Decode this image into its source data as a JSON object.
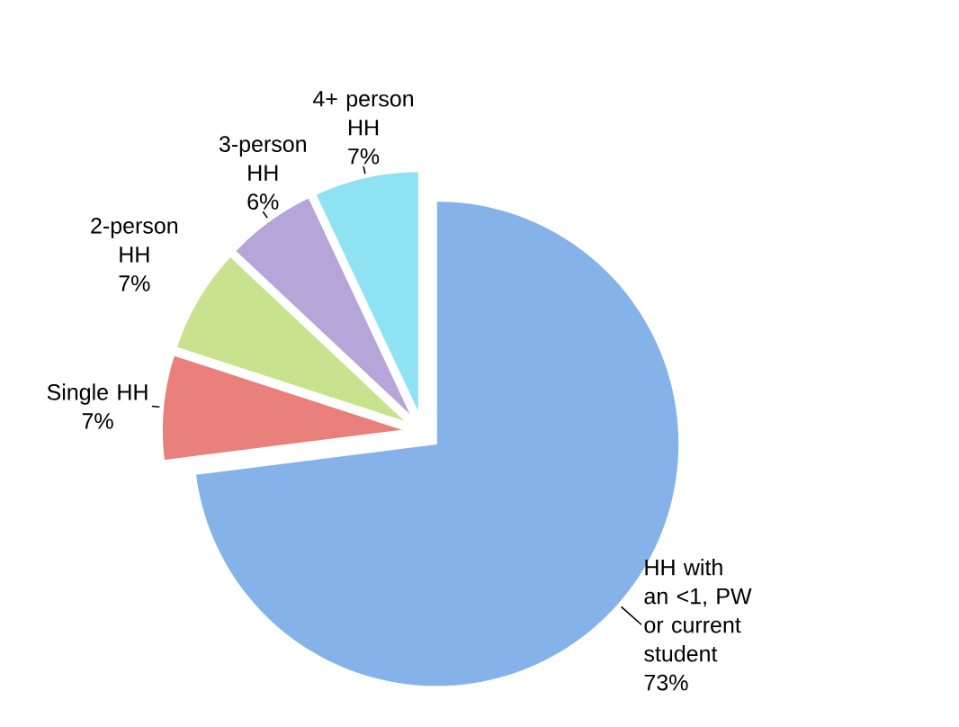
{
  "chart_data": {
    "type": "pie",
    "categories": [
      "HH with an <1, PW or current student",
      "Single HH",
      "2-person HH",
      "3-person HH",
      "4+ person HH"
    ],
    "values": [
      73,
      7,
      7,
      6,
      7
    ],
    "value_labels": [
      "73%",
      "7%",
      "7%",
      "6%",
      "7%"
    ],
    "colors": [
      "#86b2ea",
      "#e9807b",
      "#c9e28e",
      "#b6a5d9",
      "#8fe2f2"
    ]
  }
}
